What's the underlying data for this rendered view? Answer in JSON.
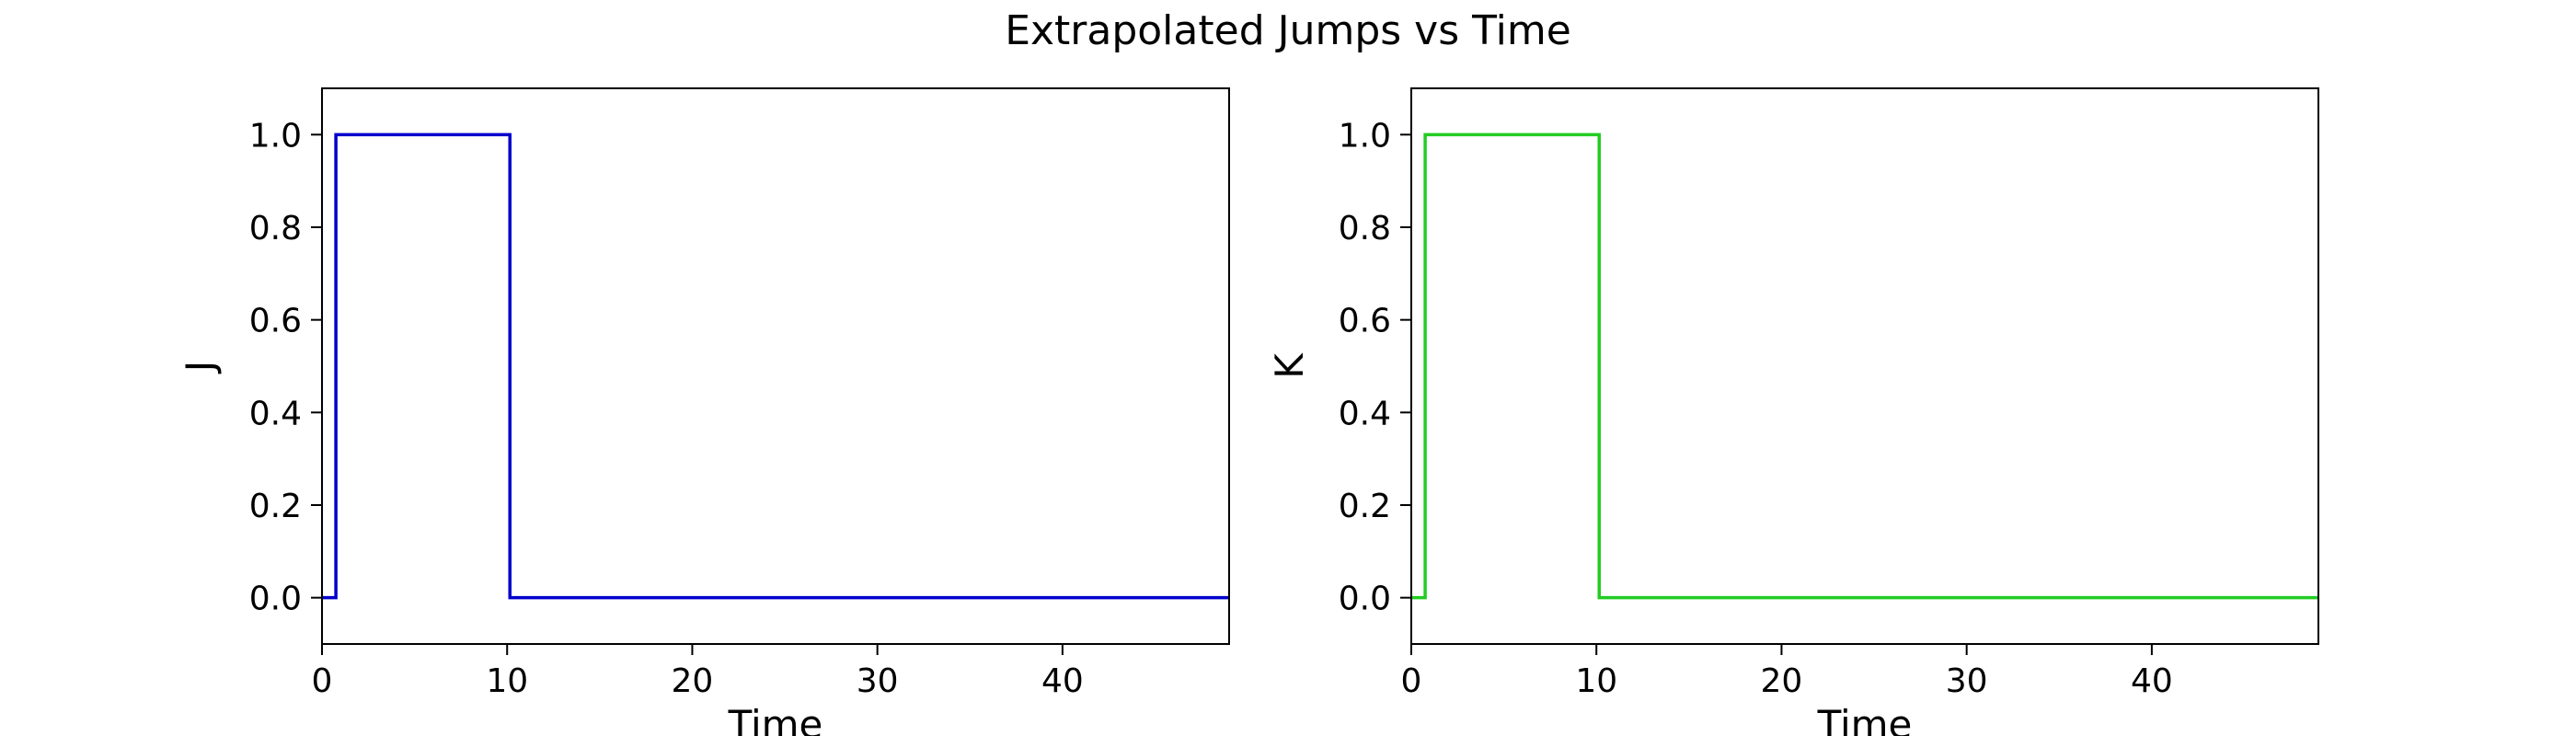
{
  "figure": {
    "title": "Extrapolated Jumps vs Time"
  },
  "chart_data": [
    {
      "type": "line",
      "drawstyle": "steps",
      "title": "",
      "xlabel": "Time",
      "ylabel": "J",
      "xlim": [
        0,
        49
      ],
      "ylim": [
        -0.1,
        1.1
      ],
      "xticks": [
        0,
        10,
        20,
        30,
        40
      ],
      "yticks": [
        0.0,
        0.2,
        0.4,
        0.6,
        0.8,
        1.0
      ],
      "x": [
        0,
        0.75,
        0.75,
        10.15,
        10.15,
        49
      ],
      "y": [
        0,
        0,
        1,
        1,
        0,
        0
      ],
      "color": "#0000cc",
      "grid": false,
      "legend": "none"
    },
    {
      "type": "line",
      "drawstyle": "steps",
      "title": "",
      "xlabel": "Time",
      "ylabel": "K",
      "xlim": [
        0,
        49
      ],
      "ylim": [
        -0.1,
        1.1
      ],
      "xticks": [
        0,
        10,
        20,
        30,
        40
      ],
      "yticks": [
        0.0,
        0.2,
        0.4,
        0.6,
        0.8,
        1.0
      ],
      "x": [
        0,
        0.75,
        0.75,
        10.15,
        10.15,
        49
      ],
      "y": [
        0,
        0,
        1,
        1,
        0,
        0
      ],
      "color": "#22cc22",
      "grid": false,
      "legend": "none"
    }
  ]
}
